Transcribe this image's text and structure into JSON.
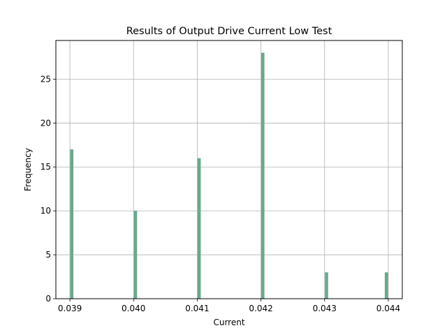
{
  "chart_data": {
    "type": "bar",
    "title": "Results of Output Drive Current Low Test",
    "xlabel": "Current",
    "ylabel": "Frequency",
    "xlim": [
      0.03878,
      0.04422
    ],
    "ylim": [
      0,
      29.4
    ],
    "x_ticks": [
      0.039,
      0.04,
      0.041,
      0.042,
      0.043,
      0.044
    ],
    "x_tick_labels": [
      "0.039",
      "0.040",
      "0.041",
      "0.042",
      "0.043",
      "0.044"
    ],
    "y_ticks": [
      0,
      5,
      10,
      15,
      20,
      25
    ],
    "y_tick_labels": [
      "0",
      "5",
      "10",
      "15",
      "20",
      "25"
    ],
    "grid": true,
    "bar_width": 5e-05,
    "bars": [
      {
        "x": 0.03903,
        "value": 17
      },
      {
        "x": 0.04003,
        "value": 10
      },
      {
        "x": 0.04103,
        "value": 16
      },
      {
        "x": 0.04203,
        "value": 28
      },
      {
        "x": 0.04303,
        "value": 3
      },
      {
        "x": 0.04397,
        "value": 3
      }
    ],
    "bar_color": "#66aa8c",
    "grid_color": "#b0b0b0"
  }
}
